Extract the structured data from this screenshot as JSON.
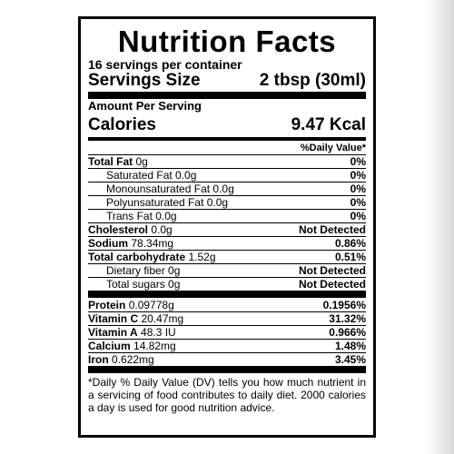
{
  "label": {
    "title": "Nutrition Facts",
    "servings_per_container": "16 servings per container",
    "serving_size_label": "Servings Size",
    "serving_size_value": "2 tbsp (30ml)",
    "amount_per_serving": "Amount Per Serving",
    "calories_label": "Calories",
    "calories_value": "9.47 Kcal",
    "daily_value_header": "%Daily Value*",
    "nutrients_group1": [
      {
        "name": "Total Fat",
        "amount": "0g",
        "pct": "0%"
      },
      {
        "name": "Saturated Fat 0.0g",
        "amount": "",
        "pct": "0%"
      },
      {
        "name": "Monounsaturated Fat 0.0g",
        "amount": "",
        "pct": "0%"
      },
      {
        "name": "Polyunsaturated Fat 0.0g",
        "amount": "",
        "pct": "0%"
      },
      {
        "name": "Trans Fat 0.0g",
        "amount": "",
        "pct": "0%"
      },
      {
        "name": "Cholesterol",
        "amount": "0.0g",
        "pct": "Not Detected"
      },
      {
        "name": "Sodium",
        "amount": "78.34mg",
        "pct": "0.86%"
      },
      {
        "name": "Total carbohydrate",
        "amount": "1.52g",
        "pct": "0.51%"
      },
      {
        "name": "Dietary fiber 0g",
        "amount": "",
        "pct": "Not Detected"
      },
      {
        "name": "Total sugars 0g",
        "amount": "",
        "pct": "Not Detected"
      }
    ],
    "nutrients_group2": [
      {
        "name": "Protein",
        "amount": "0.09778g",
        "pct": "0.1956%"
      },
      {
        "name": "Vitamin C",
        "amount": "20.47mg",
        "pct": "31.32%"
      },
      {
        "name": "Vitamin A",
        "amount": "48.3 IU",
        "pct": "0.966%"
      },
      {
        "name": "Calcium",
        "amount": "14.82mg",
        "pct": "1.48%"
      },
      {
        "name": "Iron",
        "amount": "0.622mg",
        "pct": "3.45%"
      }
    ],
    "footnote": "*Daily % Daily Value (DV) tells you how much nutrient in a servicing of food contributes to daily diet. 2000 calories a day is used for good nutrition advice."
  }
}
